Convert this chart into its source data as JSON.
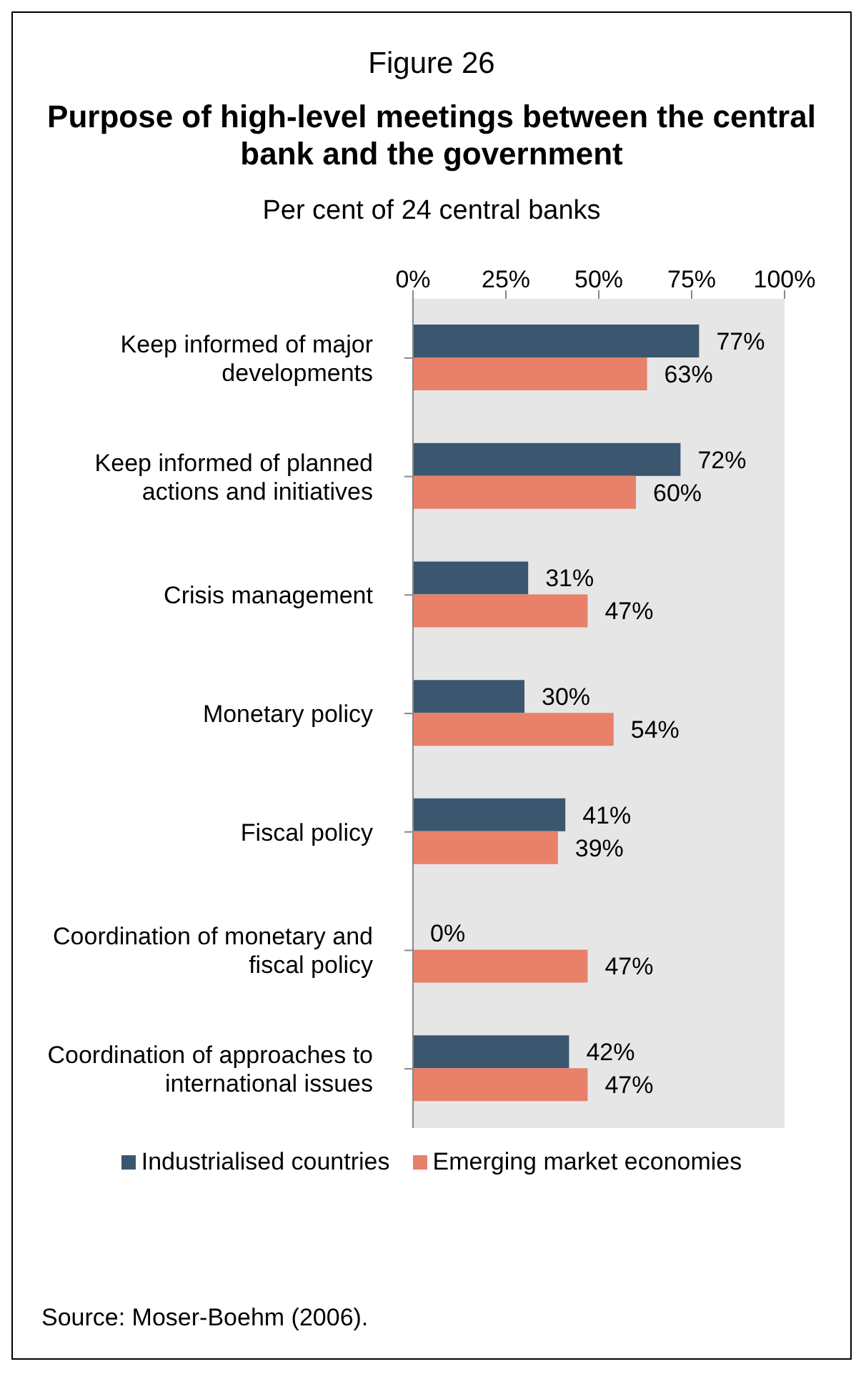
{
  "chart_data": {
    "type": "bar",
    "orientation": "horizontal",
    "title": "Purpose of high-level meetings between the central bank and the government",
    "subtitle": "Per cent of 24 central banks",
    "annotations": [
      "Figure 26",
      "Source: Moser-Boehm (2006)."
    ],
    "categories": [
      "Keep informed of major developments",
      "Keep informed of planned actions and initiatives",
      "Crisis management",
      "Monetary policy",
      "Fiscal policy",
      "Coordination of monetary and fiscal policy",
      "Coordination of approaches to international issues"
    ],
    "series": [
      {
        "name": "Industrialised countries",
        "color": "#3b5770",
        "values": [
          77,
          72,
          31,
          30,
          41,
          0,
          42
        ],
        "value_labels": [
          "77%",
          "72%",
          "31%",
          "30%",
          "41%",
          "0%",
          "42%"
        ]
      },
      {
        "name": "Emerging market economies",
        "color": "#e8806a",
        "values": [
          63,
          60,
          47,
          54,
          39,
          47,
          47
        ],
        "value_labels": [
          "63%",
          "60%",
          "47%",
          "54%",
          "39%",
          "47%",
          "47%"
        ]
      }
    ],
    "xlim": [
      0,
      100
    ],
    "xticks": [
      {
        "value": 0,
        "label": "0%"
      },
      {
        "value": 25,
        "label": "25%"
      },
      {
        "value": 50,
        "label": "50%"
      },
      {
        "value": 75,
        "label": "75%"
      },
      {
        "value": 100,
        "label": "100%"
      }
    ],
    "grid": false,
    "legend": "bottom"
  }
}
